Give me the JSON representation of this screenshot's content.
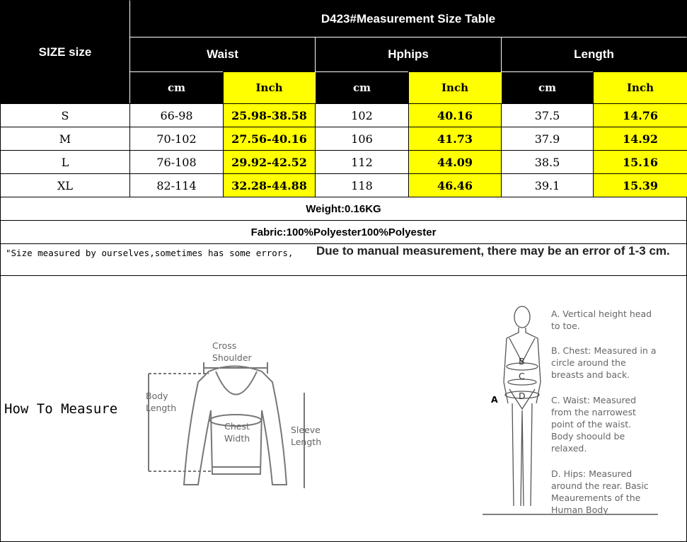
{
  "table": {
    "title": "D423#Measurement Size Table",
    "size_header": "SIZE size",
    "groups": [
      "Waist",
      "Hphips",
      "Length"
    ],
    "units": [
      "cm",
      "Inch",
      "cm",
      "Inch",
      "cm",
      "Inch"
    ],
    "rows": [
      [
        "S",
        "66-98",
        "25.98-38.58",
        "102",
        "40.16",
        "37.5",
        "14.76"
      ],
      [
        "M",
        "70-102",
        "27.56-40.16",
        "106",
        "41.73",
        "37.9",
        "14.92"
      ],
      [
        "L",
        "76-108",
        "29.92-42.52",
        "112",
        "44.09",
        "38.5",
        "15.16"
      ],
      [
        "XL",
        "82-114",
        "32.28-44.88",
        "118",
        "46.46",
        "39.1",
        "15.39"
      ]
    ],
    "weight": "Weight:0.16KG",
    "fabric": "Fabric:100%Polyester100%Polyester",
    "note_left": "\"Size measured by ourselves,sometimes has some errors,",
    "note_right": "Due to manual measurement, there may be an error of 1-3 cm."
  },
  "how_to_measure": {
    "label": "How To Measure",
    "garment_labels": {
      "cross_shoulder": "Cross Shoulder",
      "body_length": "Body Length",
      "chest_width": "Chest Width",
      "sleeve_length": "Sleeve Length"
    },
    "body_labels": {
      "a": "A",
      "b": "B",
      "c": "C",
      "d": "D"
    },
    "notes": [
      "A. Vertical height head to toe.",
      "B. Chest: Measured in a circle around the breasts and back.",
      "C. Waist: Measured from the narrowest point of the waist. Body shoould be relaxed.",
      "D. Hips: Measured around the rear. Basic Meaurements of the Human Body"
    ]
  },
  "colors": {
    "header": "#000000",
    "highlight": "#ffff00"
  }
}
